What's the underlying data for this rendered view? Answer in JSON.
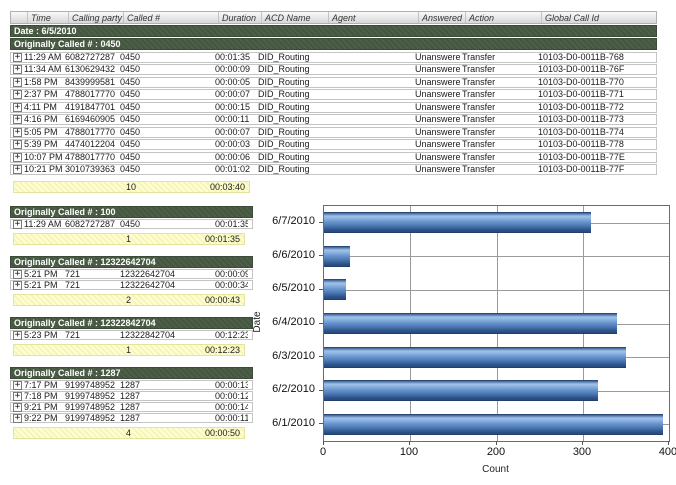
{
  "table": {
    "columns": [
      "Time",
      "Calling party #",
      "Called #",
      "Duration",
      "ACD Name",
      "Agent",
      "Answered",
      "Action",
      "Global Call Id"
    ],
    "date_header": "Date : 6/5/2010",
    "group": {
      "title": "Originally Called # : 0450",
      "rows": [
        [
          "11:29 AM",
          "6082727287",
          "0450",
          "00:01:35",
          "DID_Routing",
          "",
          "Unanswered",
          "Transfer",
          "10103-D0-0011B-768"
        ],
        [
          "11:34 AM",
          "6130629432",
          "0450",
          "00:00:09",
          "DID_Routing",
          "",
          "Unanswered",
          "Transfer",
          "10103-D0-0011B-76F"
        ],
        [
          "1:58 PM",
          "8439999581",
          "0450",
          "00:00:05",
          "DID_Routing",
          "",
          "Unanswered",
          "Transfer",
          "10103-D0-0011B-770"
        ],
        [
          "2:37 PM",
          "4788017770",
          "0450",
          "00:00:07",
          "DID_Routing",
          "",
          "Unanswered",
          "Transfer",
          "10103-D0-0011B-771"
        ],
        [
          "4:11 PM",
          "4191847701",
          "0450",
          "00:00:15",
          "DID_Routing",
          "",
          "Unanswered",
          "Transfer",
          "10103-D0-0011B-772"
        ],
        [
          "4:16 PM",
          "6169460905",
          "0450",
          "00:00:11",
          "DID_Routing",
          "",
          "Unanswered",
          "Transfer",
          "10103-D0-0011B-773"
        ],
        [
          "5:05 PM",
          "4788017770",
          "0450",
          "00:00:07",
          "DID_Routing",
          "",
          "Unanswered",
          "Transfer",
          "10103-D0-0011B-774"
        ],
        [
          "5:39 PM",
          "4474012204",
          "0450",
          "00:00:03",
          "DID_Routing",
          "",
          "Unanswered",
          "Transfer",
          "10103-D0-0011B-778"
        ],
        [
          "10:07 PM",
          "4788017770",
          "0450",
          "00:00:06",
          "DID_Routing",
          "",
          "Unanswered",
          "Transfer",
          "10103-D0-0011B-77E"
        ],
        [
          "10:21 PM",
          "3010739363",
          "0450",
          "00:01:02",
          "DID_Routing",
          "",
          "Unanswered",
          "Transfer",
          "10103-D0-0011B-77F"
        ]
      ],
      "summary": {
        "count": "10",
        "total": "00:03:40"
      }
    }
  },
  "sections": [
    {
      "title": "Originally Called # : 100",
      "rows": [
        [
          "11:29 AM",
          "6082727287",
          "0450",
          "00:01:35"
        ]
      ],
      "summary": {
        "count": "1",
        "total": "00:01:35"
      }
    },
    {
      "title": "Originally Called # : 12322642704",
      "rows": [
        [
          "5:21 PM",
          "721",
          "12322642704",
          "00:00:09"
        ],
        [
          "5:21 PM",
          "721",
          "12322642704",
          "00:00:34"
        ]
      ],
      "summary": {
        "count": "2",
        "total": "00:00:43"
      }
    },
    {
      "title": "Originally Called # : 12322842704",
      "rows": [
        [
          "5:23 PM",
          "721",
          "12322842704",
          "00:12:23"
        ]
      ],
      "summary": {
        "count": "1",
        "total": "00:12:23"
      }
    },
    {
      "title": "Originally Called # : 1287",
      "rows": [
        [
          "7:17 PM",
          "9199748952",
          "1287",
          "00:00:13"
        ],
        [
          "7:18 PM",
          "9199748952",
          "1287",
          "00:00:12"
        ],
        [
          "9:21 PM",
          "9199748952",
          "1287",
          "00:00:14"
        ],
        [
          "9:22 PM",
          "9199748952",
          "1287",
          "00:00:11"
        ]
      ],
      "summary": {
        "count": "4",
        "total": "00:00:50"
      }
    }
  ],
  "icons": {
    "expand": "+"
  },
  "colors": {
    "group_header_green": "#4d5f47",
    "summary_yellow": "#ffffcf",
    "bar_blue": "#4f81bd"
  },
  "chart_data": {
    "type": "bar",
    "orientation": "horizontal",
    "categories": [
      "6/7/2010",
      "6/6/2010",
      "6/5/2010",
      "6/4/2010",
      "6/3/2010",
      "6/2/2010",
      "6/1/2010"
    ],
    "values": [
      310,
      30,
      25,
      340,
      350,
      318,
      393
    ],
    "title": "",
    "xlabel": "Count",
    "ylabel": "Date",
    "xlim": [
      0,
      400
    ],
    "xticks": [
      0,
      100,
      200,
      300,
      400
    ],
    "grid": true,
    "legend": false
  }
}
